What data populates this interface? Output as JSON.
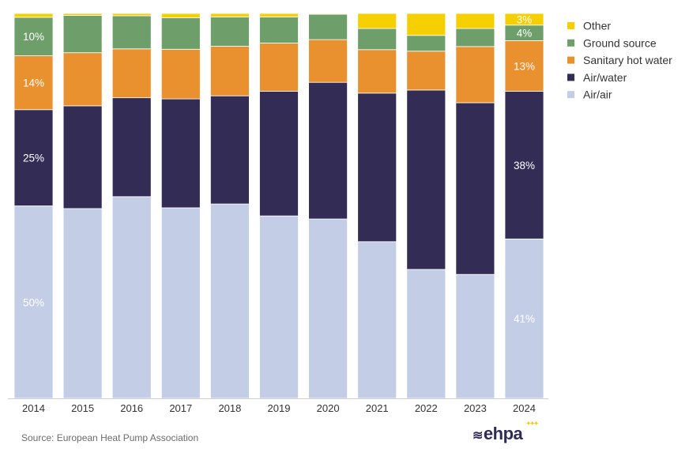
{
  "chart_data": {
    "type": "bar",
    "stacked": true,
    "normalized_percent": true,
    "categories": [
      "2014",
      "2015",
      "2016",
      "2017",
      "2018",
      "2019",
      "2020",
      "2021",
      "2022",
      "2023",
      "2024"
    ],
    "series": [
      {
        "name": "Air/air",
        "color": "#c3cde6",
        "values": [
          50,
          49.3,
          52.4,
          49.5,
          50.5,
          47.4,
          46.6,
          40.7,
          33.5,
          32.2,
          41
        ]
      },
      {
        "name": "Air/water",
        "color": "#332d55",
        "values": [
          25,
          26.7,
          25.7,
          28.3,
          28.1,
          32.4,
          35.5,
          38.6,
          46.6,
          44.6,
          38
        ]
      },
      {
        "name": "Sanitary hot water",
        "color": "#e8912e",
        "values": [
          14,
          13.8,
          12.7,
          12.9,
          12.9,
          12.5,
          11.1,
          11.3,
          10.1,
          14.6,
          13
        ]
      },
      {
        "name": "Ground source",
        "color": "#6e9e6a",
        "values": [
          10,
          9.7,
          8.6,
          8.2,
          7.6,
          6.8,
          6.6,
          5.5,
          4.1,
          4.7,
          4
        ]
      },
      {
        "name": "Other",
        "color": "#f5cf00",
        "values": [
          1,
          0.5,
          0.6,
          1.1,
          0.9,
          0.9,
          0.2,
          3.9,
          5.7,
          3.9,
          3
        ]
      }
    ],
    "data_labels": [
      {
        "category": "2014",
        "series": "Air/air",
        "text": "50%"
      },
      {
        "category": "2014",
        "series": "Air/water",
        "text": "25%"
      },
      {
        "category": "2014",
        "series": "Sanitary hot water",
        "text": "14%"
      },
      {
        "category": "2014",
        "series": "Ground source",
        "text": "10%"
      },
      {
        "category": "2024",
        "series": "Air/air",
        "text": "41%"
      },
      {
        "category": "2024",
        "series": "Air/water",
        "text": "38%"
      },
      {
        "category": "2024",
        "series": "Sanitary hot water",
        "text": "13%"
      },
      {
        "category": "2024",
        "series": "Ground source",
        "text": "4%"
      },
      {
        "category": "2024",
        "series": "Other",
        "text": "3%"
      }
    ],
    "legend_order": [
      "Other",
      "Ground source",
      "Sanitary hot water",
      "Air/water",
      "Air/air"
    ],
    "legend_position": "right",
    "ylim": [
      0,
      100
    ],
    "grid": false,
    "title": "",
    "xlabel": "",
    "ylabel": ""
  },
  "footer": {
    "source": "Source: European Heat Pump Association",
    "logo_text": "ehpa"
  }
}
